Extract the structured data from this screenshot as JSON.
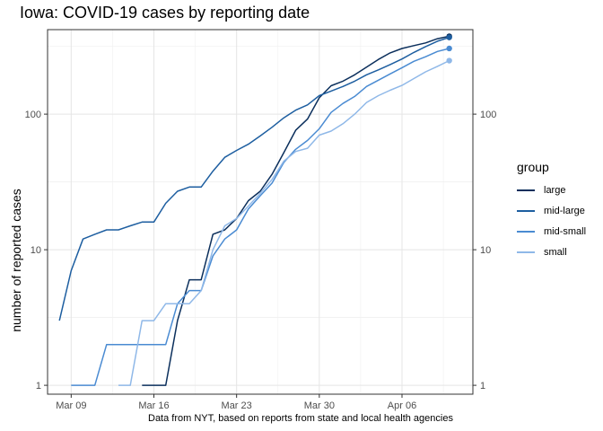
{
  "chart_data": {
    "type": "line",
    "title": "Iowa: COVID-19 cases by reporting date",
    "xlabel": "",
    "ylabel": "number of reported cases",
    "caption": "Data from NYT, based on reports from state and local health agencies",
    "y_scale": "log10",
    "ylim": [
      0.86,
      420
    ],
    "xlim": [
      "2020-03-07",
      "2020-04-12"
    ],
    "grid": true,
    "legend_position": "right",
    "legend_title": "group",
    "x_ticks": [
      {
        "date": "2020-03-09",
        "label": "Mar 09"
      },
      {
        "date": "2020-03-16",
        "label": "Mar 16"
      },
      {
        "date": "2020-03-23",
        "label": "Mar 23"
      },
      {
        "date": "2020-03-30",
        "label": "Mar 30"
      },
      {
        "date": "2020-04-06",
        "label": "Apr 06"
      }
    ],
    "y_ticks": [
      {
        "value": 1,
        "label": "1"
      },
      {
        "value": 10,
        "label": "10"
      },
      {
        "value": 100,
        "label": "100"
      }
    ],
    "series": [
      {
        "name": "large",
        "color": "#0b2f5c",
        "x": [
          "2020-03-15",
          "2020-03-16",
          "2020-03-17",
          "2020-03-18",
          "2020-03-19",
          "2020-03-20",
          "2020-03-21",
          "2020-03-22",
          "2020-03-23",
          "2020-03-24",
          "2020-03-25",
          "2020-03-26",
          "2020-03-27",
          "2020-03-28",
          "2020-03-29",
          "2020-03-30",
          "2020-03-31",
          "2020-04-01",
          "2020-04-02",
          "2020-04-03",
          "2020-04-04",
          "2020-04-05",
          "2020-04-06",
          "2020-04-07",
          "2020-04-08",
          "2020-04-09",
          "2020-04-10"
        ],
        "values": [
          1,
          1,
          1,
          3,
          6,
          6,
          13,
          14,
          17,
          23,
          27,
          36,
          52,
          76,
          92,
          132,
          162,
          175,
          195,
          222,
          253,
          283,
          305,
          320,
          335,
          360,
          375
        ]
      },
      {
        "name": "mid-large",
        "color": "#1d5ea0",
        "x": [
          "2020-03-08",
          "2020-03-09",
          "2020-03-10",
          "2020-03-11",
          "2020-03-12",
          "2020-03-13",
          "2020-03-14",
          "2020-03-15",
          "2020-03-16",
          "2020-03-17",
          "2020-03-18",
          "2020-03-19",
          "2020-03-20",
          "2020-03-21",
          "2020-03-22",
          "2020-03-23",
          "2020-03-24",
          "2020-03-25",
          "2020-03-26",
          "2020-03-27",
          "2020-03-28",
          "2020-03-29",
          "2020-03-30",
          "2020-03-31",
          "2020-04-01",
          "2020-04-02",
          "2020-04-03",
          "2020-04-04",
          "2020-04-05",
          "2020-04-06",
          "2020-04-07",
          "2020-04-08",
          "2020-04-09",
          "2020-04-10"
        ],
        "values": [
          3,
          7,
          12,
          13,
          14,
          14,
          15,
          16,
          16,
          22,
          27,
          29,
          29,
          38,
          48,
          54,
          60,
          69,
          80,
          94,
          107,
          117,
          137,
          148,
          160,
          175,
          195,
          212,
          232,
          255,
          285,
          315,
          345,
          368
        ]
      },
      {
        "name": "mid-small",
        "color": "#4a8bd2",
        "x": [
          "2020-03-09",
          "2020-03-10",
          "2020-03-11",
          "2020-03-12",
          "2020-03-13",
          "2020-03-14",
          "2020-03-15",
          "2020-03-16",
          "2020-03-17",
          "2020-03-18",
          "2020-03-19",
          "2020-03-20",
          "2020-03-21",
          "2020-03-22",
          "2020-03-23",
          "2020-03-24",
          "2020-03-25",
          "2020-03-26",
          "2020-03-27",
          "2020-03-28",
          "2020-03-29",
          "2020-03-30",
          "2020-03-31",
          "2020-04-01",
          "2020-04-02",
          "2020-04-03",
          "2020-04-04",
          "2020-04-05",
          "2020-04-06",
          "2020-04-07",
          "2020-04-08",
          "2020-04-09",
          "2020-04-10"
        ],
        "values": [
          1,
          1,
          1,
          2,
          2,
          2,
          2,
          2,
          2,
          4,
          5,
          5,
          9,
          12,
          14,
          20,
          25,
          31,
          44,
          55,
          64,
          78,
          103,
          120,
          135,
          160,
          178,
          198,
          220,
          245,
          265,
          290,
          305
        ]
      },
      {
        "name": "small",
        "color": "#8fb8e8",
        "x": [
          "2020-03-13",
          "2020-03-14",
          "2020-03-15",
          "2020-03-16",
          "2020-03-17",
          "2020-03-18",
          "2020-03-19",
          "2020-03-20",
          "2020-03-21",
          "2020-03-22",
          "2020-03-23",
          "2020-03-24",
          "2020-03-25",
          "2020-03-26",
          "2020-03-27",
          "2020-03-28",
          "2020-03-29",
          "2020-03-30",
          "2020-03-31",
          "2020-04-01",
          "2020-04-02",
          "2020-04-03",
          "2020-04-04",
          "2020-04-05",
          "2020-04-06",
          "2020-04-07",
          "2020-04-08",
          "2020-04-09",
          "2020-04-10"
        ],
        "values": [
          1,
          1,
          3,
          3,
          4,
          4,
          4,
          5,
          10,
          15,
          17,
          21,
          26,
          33,
          45,
          53,
          56,
          70,
          75,
          85,
          100,
          122,
          137,
          150,
          163,
          183,
          205,
          225,
          248
        ]
      }
    ]
  }
}
